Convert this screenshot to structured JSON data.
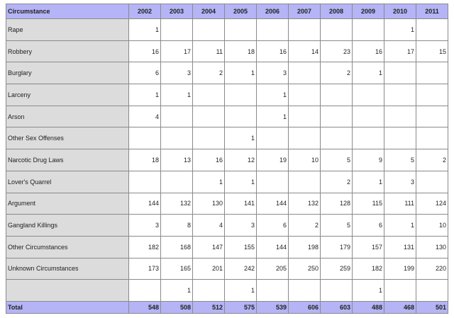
{
  "table": {
    "header": [
      "Circumstance",
      "2002",
      "2003",
      "2004",
      "2005",
      "2006",
      "2007",
      "2008",
      "2009",
      "2010",
      "2011"
    ],
    "rows": [
      {
        "label": "Rape",
        "values": [
          "1",
          "",
          "",
          "",
          "",
          "",
          "",
          "",
          "1",
          ""
        ]
      },
      {
        "label": "Robbery",
        "values": [
          "16",
          "17",
          "11",
          "18",
          "16",
          "14",
          "23",
          "16",
          "17",
          "15"
        ]
      },
      {
        "label": "Burglary",
        "values": [
          "6",
          "3",
          "2",
          "1",
          "3",
          "",
          "2",
          "1",
          "",
          ""
        ]
      },
      {
        "label": "Larceny",
        "values": [
          "1",
          "1",
          "",
          "",
          "1",
          "",
          "",
          "",
          "",
          ""
        ]
      },
      {
        "label": "Arson",
        "values": [
          "4",
          "",
          "",
          "",
          "1",
          "",
          "",
          "",
          "",
          ""
        ]
      },
      {
        "label": "Other Sex Offenses",
        "values": [
          "",
          "",
          "",
          "1",
          "",
          "",
          "",
          "",
          "",
          ""
        ]
      },
      {
        "label": "Narcotic Drug Laws",
        "values": [
          "18",
          "13",
          "16",
          "12",
          "19",
          "10",
          "5",
          "9",
          "5",
          "2"
        ]
      },
      {
        "label": "Lover's Quarrel",
        "values": [
          "",
          "",
          "1",
          "1",
          "",
          "",
          "2",
          "1",
          "3",
          ""
        ]
      },
      {
        "label": "Argument",
        "values": [
          "144",
          "132",
          "130",
          "141",
          "144",
          "132",
          "128",
          "115",
          "111",
          "124"
        ]
      },
      {
        "label": "Gangland Killings",
        "values": [
          "3",
          "8",
          "4",
          "3",
          "6",
          "2",
          "5",
          "6",
          "1",
          "10"
        ]
      },
      {
        "label": "Other Circumstances",
        "values": [
          "182",
          "168",
          "147",
          "155",
          "144",
          "198",
          "179",
          "157",
          "131",
          "130"
        ]
      },
      {
        "label": "Unknown Circumstances",
        "values": [
          "173",
          "165",
          "201",
          "242",
          "205",
          "250",
          "259",
          "182",
          "199",
          "220"
        ]
      },
      {
        "label": "",
        "values": [
          "",
          "1",
          "",
          "1",
          "",
          "",
          "",
          "1",
          "",
          ""
        ]
      }
    ],
    "total": {
      "label": "Total",
      "values": [
        "548",
        "508",
        "512",
        "575",
        "539",
        "606",
        "603",
        "488",
        "468",
        "501"
      ]
    }
  },
  "colors": {
    "header_bg": "#b4b4f6",
    "label_bg": "#dcdcdc",
    "border": "#8a8a8a"
  }
}
